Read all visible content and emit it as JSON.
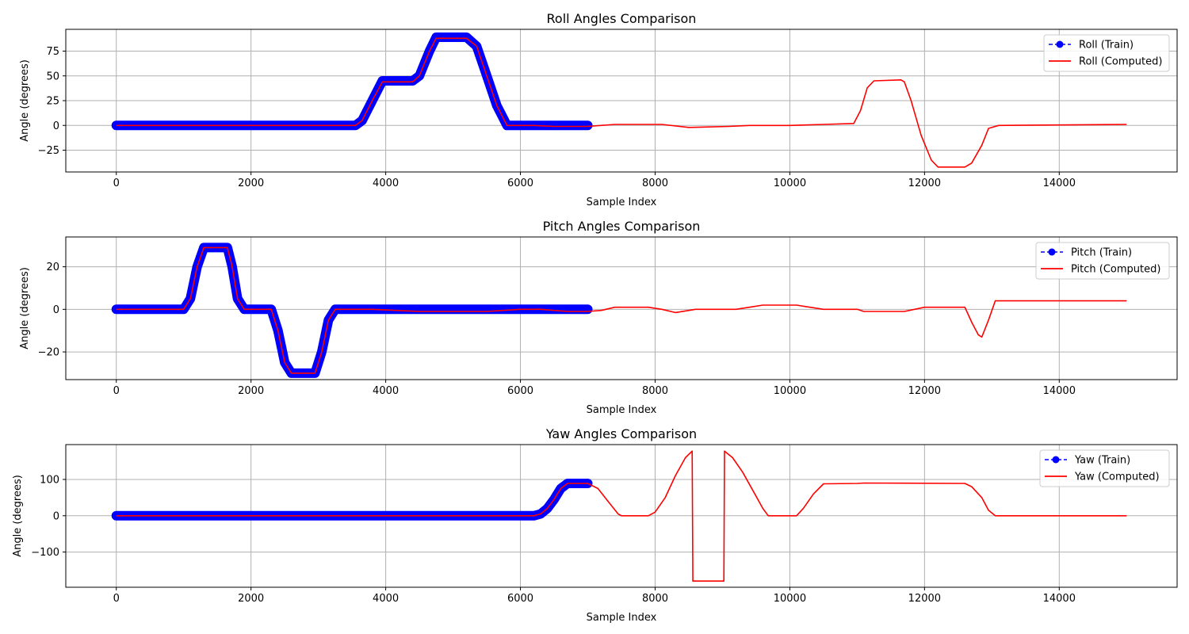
{
  "chart_data": [
    {
      "type": "line",
      "title": "Roll Angles Comparison",
      "xlabel": "Sample Index",
      "ylabel": "Angle (degrees)",
      "xlim": [
        -750,
        15750
      ],
      "ylim": [
        -47,
        97
      ],
      "xticks": [
        0,
        2000,
        4000,
        6000,
        8000,
        10000,
        12000,
        14000
      ],
      "yticks": [
        -25,
        0,
        25,
        50,
        75
      ],
      "grid": true,
      "legend": "top-right",
      "series": [
        {
          "name": "Roll (Train)",
          "color": "#0000ff",
          "style": "dashed-circle-markers",
          "x": [
            0,
            3550,
            3650,
            3800,
            3950,
            4400,
            4500,
            4650,
            4750,
            5200,
            5350,
            5500,
            5650,
            5800,
            7000
          ],
          "y": [
            0,
            0,
            5,
            25,
            45,
            45,
            50,
            75,
            89,
            89,
            80,
            50,
            20,
            0,
            0
          ]
        },
        {
          "name": "Roll (Computed)",
          "color": "#ff0000",
          "style": "solid",
          "x": [
            0,
            3550,
            3650,
            3800,
            3950,
            4400,
            4500,
            4650,
            4750,
            5200,
            5350,
            5500,
            5650,
            5800,
            6200,
            6500,
            7000,
            7400,
            8100,
            8500,
            9100,
            9400,
            9600,
            10000,
            10500,
            10950,
            11050,
            11150,
            11250,
            11650,
            11700,
            11800,
            11950,
            12100,
            12200,
            12600,
            12700,
            12850,
            12950,
            13100,
            15000
          ],
          "y": [
            0,
            0,
            5,
            25,
            44,
            44,
            50,
            75,
            88,
            88,
            80,
            50,
            20,
            0,
            0,
            -1,
            -1,
            1,
            1,
            -2,
            -1,
            0,
            0,
            0,
            1,
            2,
            15,
            38,
            45,
            46,
            44,
            25,
            -10,
            -35,
            -42,
            -42,
            -38,
            -20,
            -3,
            0,
            1
          ]
        }
      ]
    },
    {
      "type": "line",
      "title": "Pitch Angles Comparison",
      "xlabel": "Sample Index",
      "ylabel": "Angle (degrees)",
      "xlim": [
        -750,
        15750
      ],
      "ylim": [
        -33,
        34
      ],
      "xticks": [
        0,
        2000,
        4000,
        6000,
        8000,
        10000,
        12000,
        14000
      ],
      "yticks": [
        -20,
        0,
        20
      ],
      "grid": true,
      "legend": "top-right",
      "series": [
        {
          "name": "Pitch (Train)",
          "color": "#0000ff",
          "style": "dashed-circle-markers",
          "x": [
            0,
            1000,
            1100,
            1200,
            1300,
            1650,
            1720,
            1800,
            1900,
            2300,
            2400,
            2500,
            2600,
            2950,
            3050,
            3150,
            3250,
            7000
          ],
          "y": [
            0,
            0,
            5,
            20,
            29,
            29,
            20,
            5,
            0,
            0,
            -10,
            -25,
            -30,
            -30,
            -20,
            -5,
            0,
            0
          ]
        },
        {
          "name": "Pitch (Computed)",
          "color": "#ff0000",
          "style": "solid",
          "x": [
            0,
            1000,
            1100,
            1200,
            1300,
            1650,
            1720,
            1800,
            1900,
            2300,
            2400,
            2500,
            2600,
            2950,
            3050,
            3150,
            3250,
            3800,
            4500,
            5500,
            6000,
            6300,
            6700,
            7000,
            7200,
            7400,
            7900,
            8100,
            8300,
            8600,
            9200,
            9400,
            9600,
            10100,
            10300,
            10500,
            11000,
            11100,
            11700,
            12000,
            12100,
            12600,
            12700,
            12800,
            12850,
            12950,
            13050,
            15000
          ],
          "y": [
            0,
            0,
            5,
            20,
            29,
            29,
            20,
            5,
            0,
            0,
            -10,
            -25,
            -30,
            -30,
            -20,
            -5,
            0,
            0,
            -1,
            -1,
            0,
            0,
            -1,
            -1,
            -0.5,
            1,
            1,
            0,
            -1.5,
            0,
            0,
            1,
            2,
            2,
            1,
            0,
            0,
            -1,
            -1,
            1,
            1,
            1,
            -6,
            -12,
            -13,
            -5,
            4,
            4
          ]
        }
      ]
    },
    {
      "type": "line",
      "title": "Yaw Angles Comparison",
      "xlabel": "Sample Index",
      "ylabel": "Angle (degrees)",
      "xlim": [
        -750,
        15750
      ],
      "ylim": [
        -197,
        196
      ],
      "xticks": [
        0,
        2000,
        4000,
        6000,
        8000,
        10000,
        12000,
        14000
      ],
      "yticks": [
        -100,
        0,
        100
      ],
      "grid": true,
      "legend": "top-right",
      "series": [
        {
          "name": "Yaw (Train)",
          "color": "#0000ff",
          "style": "dashed-circle-markers",
          "x": [
            0,
            6200,
            6300,
            6400,
            6500,
            6600,
            6700,
            7000
          ],
          "y": [
            0,
            0,
            5,
            20,
            45,
            75,
            89,
            89
          ]
        },
        {
          "name": "Yaw (Computed)",
          "color": "#ff0000",
          "style": "solid",
          "x": [
            0,
            6200,
            6300,
            6400,
            6500,
            6600,
            6700,
            7000,
            7150,
            7300,
            7450,
            7500,
            7900,
            8000,
            8150,
            8300,
            8450,
            8550,
            8560,
            9020,
            9030,
            9150,
            9300,
            9450,
            9600,
            9680,
            10100,
            10200,
            10350,
            10500,
            11000,
            11100,
            12600,
            12700,
            12850,
            12950,
            13050,
            15000
          ],
          "y": [
            0,
            0,
            5,
            20,
            45,
            75,
            89,
            89,
            75,
            40,
            5,
            0,
            0,
            10,
            50,
            110,
            160,
            178,
            -180,
            -180,
            178,
            160,
            120,
            70,
            20,
            0,
            0,
            20,
            60,
            88,
            89,
            90,
            89,
            80,
            50,
            15,
            0,
            0
          ]
        }
      ]
    }
  ]
}
